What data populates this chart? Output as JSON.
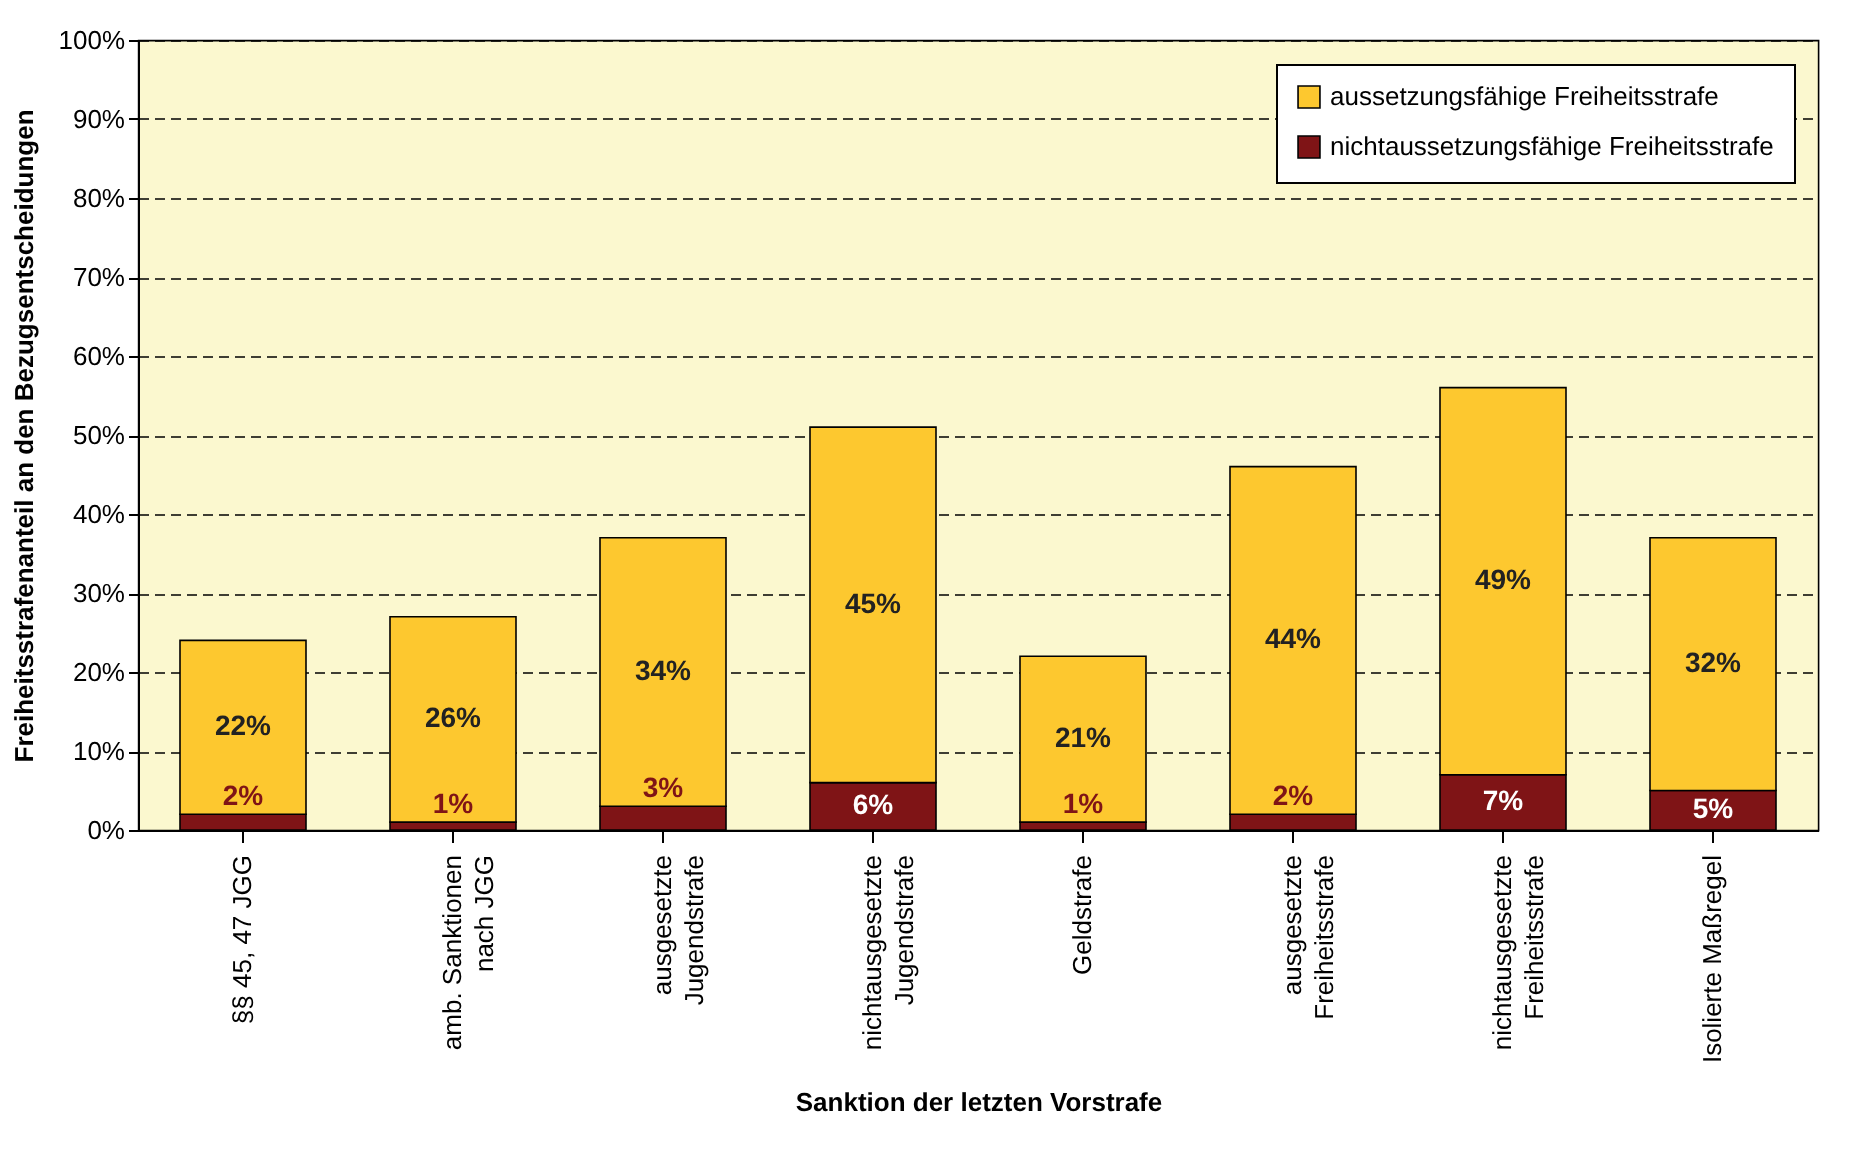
{
  "chart_data": {
    "type": "bar",
    "stacked": true,
    "xlabel": "Sanktion der letzten Vorstrafe",
    "ylabel": "Freiheitsstrafenanteil an den Bezugsentscheidungen",
    "categories": [
      "§§ 45, 47 JGG",
      "amb. Sanktionen\nnach JGG",
      "ausgesetzte\nJugendstrafe",
      "nichtausgesetzte\nJugendstrafe",
      "Geldstrafe",
      "ausgesetzte\nFreiheitsstrafe",
      "nichtausgesetzte\nFreiheitsstrafe",
      "Isolierte Maßregel"
    ],
    "series": [
      {
        "name": "nichtaussetzungsfähige Freiheitsstrafe",
        "color": "#7f1416",
        "values": [
          2,
          1,
          3,
          6,
          1,
          2,
          7,
          5
        ],
        "value_labels": [
          "2%",
          "1%",
          "3%",
          "6%",
          "1%",
          "2%",
          "7%",
          "5%"
        ]
      },
      {
        "name": "aussetzungsfähige Freiheitsstrafe",
        "color": "#fdc82f",
        "values": [
          22,
          26,
          34,
          45,
          21,
          44,
          49,
          32
        ],
        "value_labels": [
          "22%",
          "26%",
          "34%",
          "45%",
          "21%",
          "44%",
          "49%",
          "32%"
        ]
      }
    ],
    "ylim": [
      0,
      100
    ],
    "yticks": [
      {
        "value": 0,
        "label": "0%"
      },
      {
        "value": 10,
        "label": "10%"
      },
      {
        "value": 20,
        "label": "20%"
      },
      {
        "value": 30,
        "label": "30%"
      },
      {
        "value": 40,
        "label": "40%"
      },
      {
        "value": 50,
        "label": "50%"
      },
      {
        "value": 60,
        "label": "60%"
      },
      {
        "value": 70,
        "label": "70%"
      },
      {
        "value": 80,
        "label": "80%"
      },
      {
        "value": 90,
        "label": "90%"
      },
      {
        "value": 100,
        "label": "100%"
      }
    ],
    "grid": "y",
    "legend": "top right"
  }
}
